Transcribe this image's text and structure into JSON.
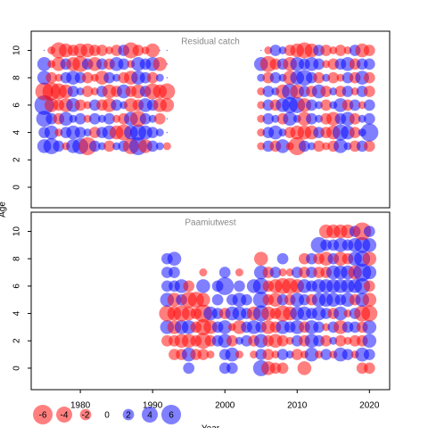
{
  "chart_data": [
    {
      "type": "bubble",
      "title": "Residual catch",
      "ylabel": "Age",
      "years": [
        1975,
        1976,
        1977,
        1978,
        1979,
        1980,
        1981,
        1982,
        1983,
        1984,
        1985,
        1986,
        1987,
        1988,
        1989,
        1990,
        1991,
        1992,
        2005,
        2006,
        2007,
        2008,
        2009,
        2010,
        2011,
        2012,
        2013,
        2014,
        2015,
        2016,
        2017,
        2018,
        2019,
        2020
      ],
      "ages": [
        3,
        4,
        5,
        6,
        7,
        8,
        9,
        10
      ],
      "residuals": [
        [
          3,
          4,
          2,
          -1,
          3,
          4,
          -5,
          2,
          1,
          -2,
          1,
          2,
          -4,
          5,
          -3,
          2,
          1,
          -1,
          -1,
          2,
          -2,
          3,
          -1,
          -5,
          2,
          1,
          -2,
          -1,
          -2,
          3,
          1,
          -2,
          2,
          -2
        ],
        [
          2,
          3,
          -1,
          2,
          3,
          2,
          1,
          -2,
          2,
          3,
          -3,
          -4,
          3,
          4,
          3,
          2,
          1,
          0,
          -1,
          2,
          3,
          1,
          -2,
          -3,
          -3,
          -3,
          2,
          -2,
          -3,
          4,
          3,
          -2,
          1,
          5
        ],
        [
          4,
          2,
          -2,
          3,
          1,
          2,
          -1,
          2,
          1,
          2,
          -1,
          -2,
          3,
          -4,
          2,
          1,
          -2,
          0,
          -1,
          2,
          1,
          -2,
          3,
          1,
          -3,
          2,
          1,
          -2,
          -3,
          2,
          3,
          -2,
          1,
          2
        ],
        [
          6,
          -3,
          -2,
          -3,
          3,
          -2,
          -1,
          2,
          -2,
          -3,
          2,
          1,
          -3,
          -2,
          3,
          2,
          -3,
          -3,
          -1,
          2,
          -2,
          3,
          4,
          4,
          -3,
          2,
          1,
          -2,
          1,
          3,
          -2,
          2,
          -1,
          2
        ],
        [
          -5,
          -5,
          -4,
          -3,
          2,
          1,
          -2,
          -1,
          2,
          -3,
          -2,
          3,
          -2,
          -3,
          2,
          -4,
          -3,
          -4,
          -1,
          2,
          1,
          -3,
          4,
          -3,
          2,
          -2,
          3,
          -2,
          1,
          -2,
          2,
          -1,
          2,
          -2
        ],
        [
          3,
          -2,
          -1,
          2,
          3,
          2,
          -2,
          -1,
          -3,
          2,
          1,
          -2,
          -3,
          3,
          2,
          -2,
          1,
          0,
          1,
          -2,
          2,
          1,
          -3,
          3,
          4,
          2,
          -2,
          1,
          -2,
          -1,
          2,
          -2,
          3,
          -2
        ],
        [
          3,
          -1,
          -3,
          2,
          -3,
          -4,
          2,
          -3,
          2,
          -2,
          3,
          2,
          -1,
          3,
          2,
          3,
          -3,
          0,
          3,
          -4,
          -2,
          2,
          -3,
          3,
          2,
          3,
          2,
          -1,
          -2,
          2,
          3,
          -2,
          2,
          2
        ],
        [
          0,
          -1,
          -4,
          -3,
          -2,
          -3,
          -3,
          -2,
          -2,
          -1,
          -2,
          2,
          -4,
          -2,
          -1,
          -3,
          0,
          0,
          0,
          -1,
          2,
          1,
          -2,
          -3,
          -4,
          -3,
          2,
          -2,
          -1,
          -2,
          -1,
          2,
          -3,
          -2
        ]
      ],
      "xlim": [
        1973.2,
        2022.8
      ],
      "ylim": [
        -1.5,
        11.4
      ],
      "yticks": [
        0,
        2,
        4,
        6,
        8,
        10
      ],
      "positive_color": "rgba(0,0,255,0.5)",
      "negative_color": "rgba(255,0,0,0.5)"
    },
    {
      "type": "bubble",
      "title": "Paamiutwest",
      "xlabel": "Year",
      "years": [
        1992,
        1993,
        1994,
        1995,
        1996,
        1997,
        1998,
        1999,
        2000,
        2001,
        2002,
        2003,
        2004,
        2005,
        2006,
        2007,
        2008,
        2009,
        2010,
        2011,
        2012,
        2013,
        2014,
        2015,
        2016,
        2017,
        2018,
        2019,
        2020
      ],
      "ages": [
        0,
        1,
        2,
        3,
        4,
        5,
        6,
        7,
        8,
        9,
        10
      ],
      "residuals": [
        [
          null,
          null,
          null,
          2,
          null,
          null,
          null,
          null,
          2,
          2,
          null,
          null,
          null,
          4,
          -3,
          -2,
          -2,
          null,
          null,
          -3,
          null,
          null,
          null,
          null,
          null,
          null,
          null,
          -2,
          -2
        ],
        [
          null,
          -2,
          -2,
          3,
          -2,
          -2,
          -1,
          null,
          2,
          3,
          -1,
          null,
          -1,
          2,
          -2,
          -1,
          2,
          1,
          -2,
          -1,
          3,
          -1,
          2,
          -1,
          3,
          2,
          -1,
          3,
          2
        ],
        [
          -2,
          -2,
          -3,
          -3,
          -2,
          -4,
          -2,
          2,
          3,
          -2,
          1,
          2,
          -2,
          3,
          -2,
          -3,
          -2,
          -1,
          2,
          -2,
          3,
          2,
          -2,
          1,
          -2,
          -1,
          -2,
          -2,
          3
        ],
        [
          3,
          -3,
          3,
          3,
          -2,
          -4,
          -3,
          2,
          3,
          -1,
          -3,
          2,
          3,
          2,
          -3,
          -2,
          3,
          2,
          3,
          -2,
          3,
          2,
          -1,
          2,
          -3,
          2,
          2,
          -2,
          3
        ],
        [
          -4,
          -3,
          -4,
          -3,
          -2,
          -5,
          3,
          2,
          -2,
          3,
          3,
          2,
          -3,
          4,
          -3,
          -2,
          -4,
          -3,
          3,
          3,
          2,
          3,
          2,
          -2,
          3,
          -1,
          2,
          -4,
          -4
        ],
        [
          3,
          -3,
          2,
          -4,
          -4,
          -3,
          null,
          2,
          null,
          2,
          3,
          2,
          null,
          4,
          -2,
          -3,
          2,
          -2,
          3,
          2,
          -2,
          3,
          3,
          3,
          2,
          3,
          -2,
          3,
          -3
        ],
        [
          2,
          2,
          3,
          -2,
          null,
          3,
          null,
          2,
          5,
          null,
          2,
          null,
          3,
          4,
          -2,
          -3,
          -4,
          -4,
          -3,
          3,
          2,
          3,
          3,
          3,
          3,
          3,
          3,
          4,
          -2
        ],
        [
          2,
          2,
          null,
          null,
          null,
          -1,
          null,
          null,
          2,
          null,
          -1,
          null,
          null,
          3,
          -2,
          2,
          -1,
          -1,
          2,
          -2,
          2,
          -2,
          -2,
          3,
          3,
          3,
          -3,
          5,
          3
        ],
        [
          2,
          3,
          null,
          null,
          null,
          null,
          null,
          null,
          null,
          null,
          null,
          null,
          null,
          -3,
          null,
          null,
          2,
          null,
          null,
          -2,
          2,
          -2,
          -3,
          2,
          -3,
          -2,
          3,
          4,
          -3
        ],
        [
          null,
          null,
          null,
          null,
          null,
          null,
          null,
          null,
          null,
          null,
          null,
          null,
          null,
          null,
          null,
          null,
          null,
          null,
          null,
          null,
          null,
          4,
          2,
          2,
          3,
          2,
          3,
          4,
          3
        ],
        [
          null,
          null,
          null,
          null,
          null,
          null,
          null,
          null,
          null,
          null,
          null,
          null,
          null,
          null,
          null,
          null,
          null,
          null,
          null,
          null,
          null,
          null,
          -3,
          -3,
          -3,
          -3,
          2,
          -5,
          2
        ]
      ],
      "xlim": [
        1973.2,
        2022.8
      ],
      "ylim": [
        -1.57,
        11.4
      ],
      "xticks": [
        1980,
        1990,
        2000,
        2010,
        2020
      ],
      "yticks": [
        0,
        2,
        4,
        6,
        8,
        10
      ],
      "positive_color": "rgba(0,0,255,0.5)",
      "negative_color": "rgba(255,0,0,0.5)",
      "legend": [
        -6,
        -4,
        -2,
        0,
        2,
        4,
        6
      ]
    }
  ]
}
